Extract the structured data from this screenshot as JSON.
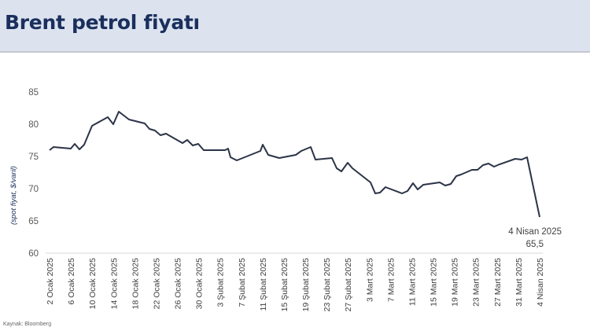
{
  "header": {
    "title": "Brent petrol fiyatı"
  },
  "source": "Kaynak: Bloomberg",
  "colors": {
    "header_bg": "#dce3ef",
    "title": "#1a2f5c",
    "line": "#2b3347",
    "axis": "#d9d9d9"
  },
  "chart_data": {
    "type": "line",
    "title": "Brent petrol fiyatı",
    "xlabel": "",
    "ylabel": "(spot fiyat, $/varil)",
    "ylim": [
      60,
      85
    ],
    "yticks": [
      60,
      65,
      70,
      75,
      80,
      85
    ],
    "grid": false,
    "legend": "none",
    "x_tick_labels": [
      "2 Ocak 2025",
      "6 Ocak 2025",
      "10 Ocak 2025",
      "14 Ocak 2025",
      "18 Ocak 2025",
      "22 Ocak 2025",
      "26 Ocak 2025",
      "30 Ocak 2025",
      "3 Şubat 2025",
      "7 Şubat 2025",
      "11 Şubat 2025",
      "15 Şubat 2025",
      "19 Şubat 2025",
      "23 Şubat 2025",
      "27 Şubat 2025",
      "3 Mart 2025",
      "7 Mart 2025",
      "11 Mart 2025",
      "15 Mart 2025",
      "19 Mart 2025",
      "23 Mart 2025",
      "27 Mart 2025",
      "31 Mart 2025",
      "4 Nisan 2025"
    ],
    "series": [
      {
        "name": "Brent",
        "points": [
          {
            "x": "2 Ocak 2025",
            "y": 76.0
          },
          {
            "x": "3 Ocak 2025",
            "y": 76.5
          },
          {
            "x": "6 Ocak 2025",
            "y": 76.3
          },
          {
            "x": "7 Ocak 2025",
            "y": 77.0
          },
          {
            "x": "8 Ocak 2025",
            "y": 76.2
          },
          {
            "x": "9 Ocak 2025",
            "y": 76.9
          },
          {
            "x": "10 Ocak 2025",
            "y": 79.8
          },
          {
            "x": "13 Ocak 2025",
            "y": 81.1
          },
          {
            "x": "14 Ocak 2025",
            "y": 80.0
          },
          {
            "x": "15 Ocak 2025",
            "y": 82.0
          },
          {
            "x": "17 Ocak 2025",
            "y": 80.8
          },
          {
            "x": "20 Ocak 2025",
            "y": 80.2
          },
          {
            "x": "21 Ocak 2025",
            "y": 79.3
          },
          {
            "x": "22 Ocak 2025",
            "y": 79.1
          },
          {
            "x": "23 Ocak 2025",
            "y": 78.3
          },
          {
            "x": "24 Ocak 2025",
            "y": 78.5
          },
          {
            "x": "27 Ocak 2025",
            "y": 77.0
          },
          {
            "x": "28 Ocak 2025",
            "y": 77.5
          },
          {
            "x": "29 Ocak 2025",
            "y": 76.8
          },
          {
            "x": "30 Ocak 2025",
            "y": 77.0
          },
          {
            "x": "31 Ocak 2025",
            "y": 76.0
          },
          {
            "x": "3 Şubat 2025",
            "y": 76.0
          },
          {
            "x": "4 Şubat 2025",
            "y": 76.2
          },
          {
            "x": "5 Şubat 2025",
            "y": 74.8
          },
          {
            "x": "6 Şubat 2025",
            "y": 74.4
          },
          {
            "x": "10 Şubat 2025",
            "y": 75.9
          },
          {
            "x": "11 Şubat 2025",
            "y": 77.0
          },
          {
            "x": "12 Şubat 2025",
            "y": 75.2
          },
          {
            "x": "14 Şubat 2025",
            "y": 74.7
          },
          {
            "x": "17 Şubat 2025",
            "y": 75.2
          },
          {
            "x": "18 Şubat 2025",
            "y": 75.8
          },
          {
            "x": "19 Şubat 2025",
            "y": 76.5
          },
          {
            "x": "20 Şubat 2025",
            "y": 74.5
          },
          {
            "x": "24 Şubat 2025",
            "y": 74.7
          },
          {
            "x": "25 Şubat 2025",
            "y": 73.0
          },
          {
            "x": "26 Şubat 2025",
            "y": 72.5
          },
          {
            "x": "27 Şubat 2025",
            "y": 74.0
          },
          {
            "x": "28 Şubat 2025",
            "y": 73.1
          },
          {
            "x": "3 Mart 2025",
            "y": 71.0
          },
          {
            "x": "4 Mart 2025",
            "y": 69.4
          },
          {
            "x": "5 Mart 2025",
            "y": 69.5
          },
          {
            "x": "6 Mart 2025",
            "y": 70.3
          },
          {
            "x": "10 Mart 2025",
            "y": 69.3
          },
          {
            "x": "11 Mart 2025",
            "y": 69.7
          },
          {
            "x": "12 Mart 2025",
            "y": 70.9
          },
          {
            "x": "13 Mart 2025",
            "y": 69.9
          },
          {
            "x": "14 Mart 2025",
            "y": 70.6
          },
          {
            "x": "18 Mart 2025",
            "y": 71.0
          },
          {
            "x": "19 Mart 2025",
            "y": 70.5
          },
          {
            "x": "20 Mart 2025",
            "y": 70.8
          },
          {
            "x": "21 Mart 2025",
            "y": 72.0
          },
          {
            "x": "24 Mart 2025",
            "y": 72.2
          },
          {
            "x": "25 Mart 2025",
            "y": 72.9
          },
          {
            "x": "26 Mart 2025",
            "y": 72.9
          },
          {
            "x": "27 Mart 2025",
            "y": 73.7
          },
          {
            "x": "28 Mart 2025",
            "y": 74.0
          },
          {
            "x": "31 Mart 2025",
            "y": 73.5
          },
          {
            "x": "1 Nisan 2025",
            "y": 73.9
          },
          {
            "x": "2 Nisan 2025",
            "y": 74.7
          },
          {
            "x": "3 Nisan 2025",
            "y": 74.6
          },
          {
            "x": "3 Nisan 2025 (b)",
            "y": 74.9
          },
          {
            "x": "4 Nisan 2025",
            "y": 65.5
          }
        ]
      }
    ],
    "annotations": [
      {
        "text_line1": "4 Nisan 2025",
        "text_line2": "65,5",
        "x": "4 Nisan 2025",
        "y": 65.5
      }
    ]
  },
  "pixel_polyline": "63,191 68,187 90,189 95,183 101,190 107,184 117,160 137,149 144,158 151,142 164,152 184,157 190,164 197,166 204,172 211,170 232,182 238,178 245,185 252,183 259,191 286,191 290,189 293,200 301,204 331,192 334,184 341,197 355,201 376,197 383,192 395,187 401,203 422,201 428,214 434,218 442,207 448,214 471,232 477,246 483,245 490,238 511,246 518,243 525,233 531,241 538,235 559,232 566,236 573,234 580,224 586,222 600,216 607,216 614,210 621,208 628,212 635,209 655,202 663,203 670,200 686,276"
}
